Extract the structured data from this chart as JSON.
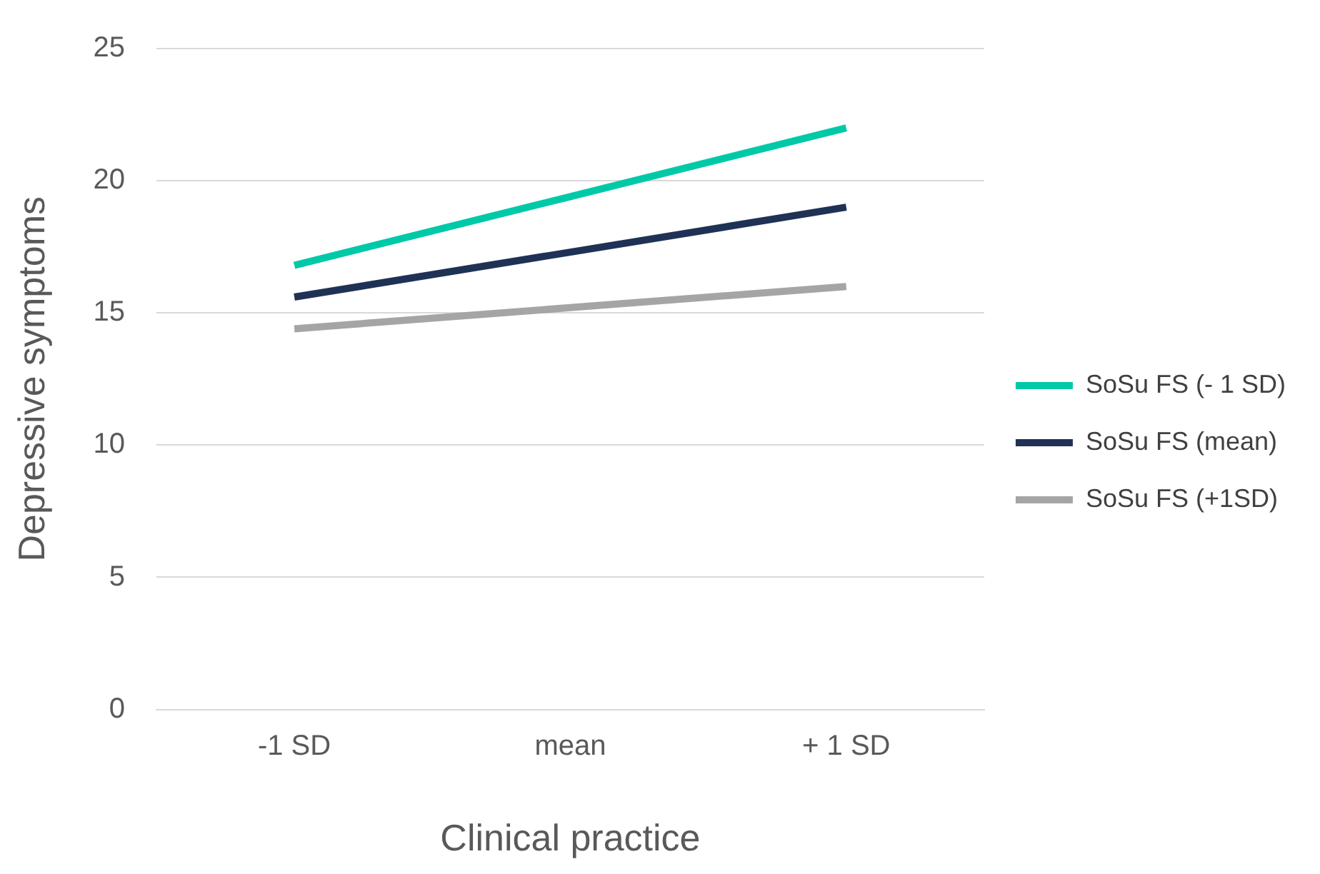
{
  "chart_data": {
    "type": "line",
    "xlabel": "Clinical practice",
    "ylabel": "Depressive symptoms",
    "categories": [
      "-1 SD",
      "mean",
      "+ 1 SD"
    ],
    "series": [
      {
        "name": "SoSu FS (- 1 SD)",
        "color": "#00c9a7",
        "values": [
          16.8,
          19.4,
          22
        ]
      },
      {
        "name": "SoSu FS (mean)",
        "color": "#1f3255",
        "values": [
          15.6,
          17.3,
          19
        ]
      },
      {
        "name": "SoSu FS (+1SD)",
        "color": "#a5a5a5",
        "values": [
          14.4,
          15.2,
          16
        ]
      }
    ],
    "ylim": [
      0,
      25
    ],
    "yticks": [
      0,
      5,
      10,
      15,
      20,
      25
    ],
    "grid": "y",
    "legend": "right",
    "marker": "none",
    "line_style": "solid"
  }
}
